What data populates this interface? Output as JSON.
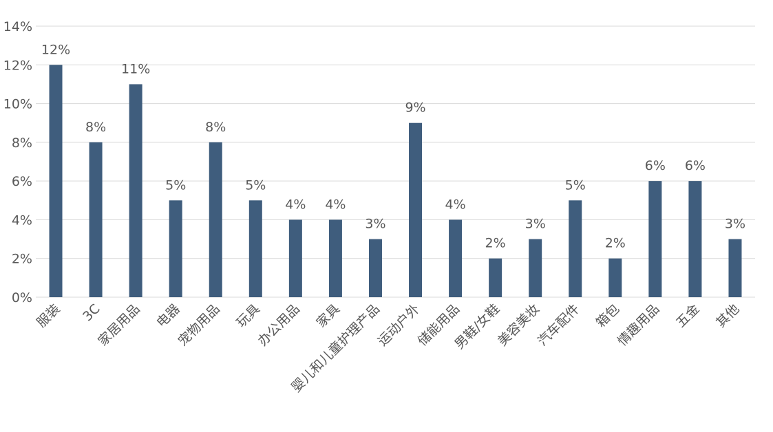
{
  "chart_data": {
    "type": "bar",
    "title": "",
    "xlabel": "",
    "ylabel": "",
    "categories": [
      "服装",
      "3C",
      "家居用品",
      "电器",
      "宠物用品",
      "玩具",
      "办公用品",
      "家具",
      "婴儿和儿童护理产品",
      "运动户外",
      "储能用品",
      "男鞋/女鞋",
      "美容美妆",
      "汽车配件",
      "箱包",
      "情趣用品",
      "五金",
      "其他"
    ],
    "values": [
      12,
      8,
      11,
      5,
      8,
      5,
      4,
      4,
      3,
      9,
      4,
      2,
      3,
      5,
      2,
      6,
      6,
      3
    ],
    "data_labels": [
      "12%",
      "8%",
      "11%",
      "5%",
      "8%",
      "5%",
      "4%",
      "4%",
      "3%",
      "9%",
      "4%",
      "2%",
      "3%",
      "5%",
      "2%",
      "6%",
      "6%",
      "3%"
    ],
    "yticks": [
      "0%",
      "2%",
      "4%",
      "6%",
      "8%",
      "10%",
      "12%",
      "14%"
    ],
    "ylim": [
      0,
      14
    ],
    "grid": true,
    "legend": "none",
    "bar_color": "#3f5d7d",
    "grid_color": "#d9d9d9",
    "text_color": "#595959"
  }
}
